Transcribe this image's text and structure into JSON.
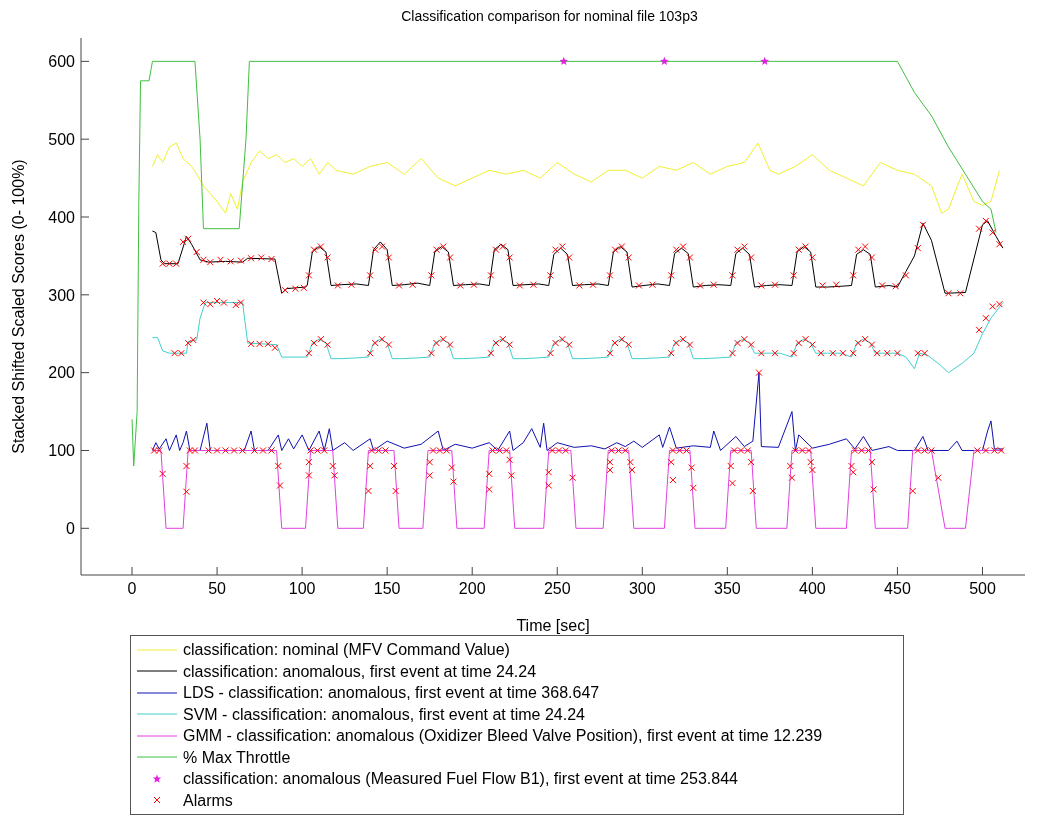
{
  "chart_data": {
    "type": "line",
    "title": "Classification comparison for nominal file 103p3",
    "xlabel": "Time [sec]",
    "ylabel": "Stacked Shifted Scaled Scores (0- 100%)",
    "xlim": [
      -30,
      525
    ],
    "ylim": [
      -60,
      630
    ],
    "xticks": [
      0,
      50,
      100,
      150,
      200,
      250,
      300,
      350,
      400,
      450,
      500
    ],
    "yticks": [
      0,
      100,
      200,
      300,
      400,
      500,
      600
    ],
    "legend": "bottom",
    "marker": "none",
    "series": [
      {
        "name": "classification: nominal (MFV Command Value)",
        "color": "#f0f030",
        "x": [
          12,
          15,
          18,
          22,
          26,
          30,
          35,
          38,
          42,
          46,
          50,
          55,
          58,
          62,
          65,
          70,
          75,
          80,
          85,
          90,
          95,
          100,
          105,
          110,
          115,
          120,
          130,
          140,
          150,
          160,
          170,
          180,
          190,
          200,
          210,
          220,
          230,
          240,
          250,
          260,
          270,
          280,
          290,
          300,
          310,
          320,
          330,
          340,
          350,
          360,
          368,
          375,
          380,
          390,
          400,
          410,
          420,
          430,
          440,
          450,
          460,
          470,
          476,
          480,
          488,
          495,
          500,
          505,
          510
        ],
        "values": [
          465,
          480,
          470,
          490,
          495,
          475,
          465,
          455,
          440,
          430,
          420,
          405,
          430,
          410,
          445,
          470,
          485,
          475,
          480,
          470,
          475,
          465,
          475,
          455,
          470,
          460,
          455,
          465,
          470,
          455,
          475,
          450,
          440,
          450,
          460,
          455,
          460,
          450,
          470,
          455,
          445,
          460,
          460,
          450,
          465,
          460,
          470,
          455,
          465,
          470,
          495,
          460,
          455,
          465,
          480,
          460,
          450,
          440,
          470,
          460,
          455,
          440,
          405,
          410,
          455,
          420,
          415,
          420,
          460
        ]
      },
      {
        "name": "classification: anomalous, first event at time 24.24",
        "color": "#000000",
        "x": [
          12,
          14,
          17,
          19,
          27,
          32,
          35,
          40,
          45,
          55,
          65,
          68,
          84,
          88,
          91,
          102,
          103,
          106,
          110,
          114,
          117,
          123,
          132,
          139,
          142,
          146,
          150,
          153,
          160,
          168,
          175,
          178,
          182,
          186,
          189,
          196,
          204,
          210,
          213,
          217,
          221,
          224,
          231,
          239,
          245,
          248,
          252,
          256,
          259,
          266,
          274,
          280,
          283,
          287,
          291,
          294,
          301,
          309,
          316,
          319,
          323,
          327,
          330,
          337,
          345,
          352,
          355,
          359,
          363,
          366,
          373,
          381,
          388,
          391,
          395,
          399,
          402,
          409,
          417,
          423,
          426,
          430,
          434,
          437,
          445,
          450,
          455,
          460,
          465,
          470,
          478,
          490,
          500,
          503,
          508,
          512
        ],
        "values": [
          382,
          380,
          345,
          340,
          340,
          375,
          365,
          345,
          342,
          343,
          342,
          347,
          346,
          302,
          308,
          310,
          312,
          355,
          362,
          355,
          312,
          313,
          314,
          312,
          358,
          368,
          358,
          312,
          313,
          315,
          312,
          355,
          362,
          355,
          312,
          313,
          314,
          312,
          358,
          365,
          358,
          312,
          313,
          314,
          312,
          352,
          360,
          352,
          312,
          313,
          314,
          312,
          355,
          362,
          355,
          310,
          312,
          314,
          312,
          353,
          360,
          353,
          310,
          312,
          313,
          312,
          353,
          360,
          352,
          310,
          312,
          313,
          312,
          355,
          362,
          355,
          310,
          310,
          311,
          312,
          352,
          358,
          352,
          310,
          312,
          310,
          330,
          350,
          392,
          370,
          302,
          303,
          390,
          395,
          375,
          360
        ]
      },
      {
        "name": "LDS - classification: anomalous, first event at time 368.647",
        "color": "#1010b0",
        "x": [
          12,
          14,
          16,
          20,
          22,
          26,
          28,
          30,
          32,
          34,
          40,
          44,
          46,
          66,
          70,
          72,
          80,
          86,
          88,
          92,
          95,
          100,
          104,
          110,
          113,
          116,
          118,
          125,
          130,
          140,
          142,
          150,
          160,
          170,
          180,
          183,
          190,
          200,
          210,
          215,
          222,
          224,
          230,
          235,
          240,
          242,
          244,
          250,
          260,
          270,
          278,
          285,
          290,
          295,
          300,
          310,
          312,
          316,
          320,
          330,
          340,
          342,
          346,
          355,
          360,
          365,
          368.6,
          370,
          380,
          388,
          390,
          392,
          400,
          410,
          420,
          425,
          430,
          435,
          445,
          450,
          460,
          465,
          468,
          480,
          485,
          488,
          500,
          503,
          505,
          507,
          512
        ],
        "values": [
          100,
          110,
          102,
          115,
          100,
          120,
          100,
          110,
          125,
          100,
          100,
          135,
          100,
          100,
          125,
          100,
          100,
          120,
          100,
          115,
          102,
          120,
          100,
          125,
          100,
          128,
          100,
          110,
          100,
          115,
          100,
          112,
          103,
          108,
          125,
          100,
          108,
          103,
          110,
          100,
          125,
          100,
          110,
          128,
          104,
          135,
          100,
          110,
          104,
          106,
          102,
          110,
          105,
          112,
          104,
          120,
          104,
          130,
          103,
          106,
          104,
          125,
          100,
          118,
          105,
          112,
          200,
          105,
          104,
          150,
          100,
          120,
          103,
          108,
          115,
          102,
          118,
          100,
          105,
          100,
          100,
          118,
          100,
          100,
          112,
          100,
          100,
          125,
          138,
          102,
          102
        ]
      },
      {
        "name": "SVM - classification: anomalous, first event at time 24.24",
        "color": "#40d0d0",
        "x": [
          12,
          15,
          18,
          22,
          32,
          33,
          38,
          40,
          43,
          65,
          68,
          85,
          88,
          102,
          103,
          106,
          110,
          114,
          117,
          123,
          132,
          139,
          142,
          146,
          150,
          153,
          159,
          168,
          175,
          178,
          182,
          186,
          189,
          195,
          204,
          210,
          213,
          217,
          221,
          224,
          230,
          239,
          245,
          248,
          252,
          256,
          259,
          265,
          274,
          280,
          283,
          287,
          291,
          294,
          300,
          309,
          316,
          319,
          323,
          327,
          330,
          336,
          345,
          352,
          355,
          359,
          363,
          366,
          373,
          381,
          388,
          391,
          395,
          399,
          402,
          409,
          417,
          423,
          426,
          430,
          434,
          437,
          445,
          450,
          455,
          460,
          463,
          468,
          475,
          480,
          488,
          495,
          500,
          505,
          512
        ],
        "values": [
          245,
          245,
          228,
          225,
          225,
          240,
          242,
          270,
          290,
          290,
          238,
          236,
          220,
          220,
          220,
          238,
          243,
          238,
          218,
          218,
          219,
          220,
          238,
          243,
          238,
          218,
          218,
          219,
          220,
          238,
          243,
          238,
          218,
          218,
          219,
          220,
          238,
          243,
          238,
          218,
          218,
          219,
          220,
          238,
          243,
          238,
          218,
          218,
          219,
          220,
          238,
          243,
          238,
          218,
          218,
          219,
          220,
          238,
          243,
          238,
          218,
          218,
          219,
          220,
          238,
          243,
          238,
          225,
          225,
          225,
          220,
          238,
          243,
          238,
          225,
          225,
          225,
          220,
          238,
          243,
          238,
          225,
          225,
          225,
          220,
          205,
          225,
          222,
          210,
          200,
          212,
          225,
          250,
          270,
          290
        ]
      },
      {
        "name": "GMM - classification: anomalous (Oxidizer Bleed Valve Position), first event at time 12.239",
        "color": "#e040e0",
        "x": [
          12,
          17,
          20,
          30,
          33,
          85,
          88,
          102,
          105,
          118,
          121,
          136,
          139,
          154,
          157,
          171,
          174,
          188,
          191,
          207,
          210,
          222,
          225,
          242,
          245,
          258,
          261,
          277,
          280,
          292,
          295,
          313,
          316,
          328,
          331,
          349,
          352,
          364,
          367,
          385,
          388,
          399,
          402,
          420,
          423,
          434,
          437,
          456,
          459,
          470,
          478,
          490,
          495,
          512
        ],
        "values": [
          100,
          100,
          0,
          0,
          100,
          100,
          0,
          0,
          100,
          100,
          0,
          0,
          100,
          100,
          0,
          0,
          100,
          100,
          0,
          0,
          100,
          100,
          0,
          0,
          100,
          100,
          0,
          0,
          100,
          100,
          0,
          0,
          100,
          100,
          0,
          0,
          100,
          100,
          0,
          0,
          100,
          100,
          0,
          0,
          100,
          100,
          0,
          0,
          100,
          100,
          0,
          0,
          100,
          100
        ]
      },
      {
        "name": "% Max Throttle",
        "color": "#40c040",
        "x": [
          0,
          1,
          3,
          4,
          5,
          10,
          12,
          37,
          40,
          42,
          63,
          67,
          69,
          450,
          460,
          470,
          480,
          490,
          500,
          505,
          508
        ],
        "values": [
          140,
          80,
          150,
          420,
          575,
          575,
          600,
          600,
          500,
          385,
          385,
          500,
          600,
          600,
          560,
          530,
          490,
          455,
          420,
          410,
          380
        ]
      },
      {
        "name": "classification: anomalous (Measured Fuel Flow B1), first event at time 253.844",
        "type": "scatter",
        "marker": "star",
        "color": "#e020e0",
        "x": [
          253.844,
          313,
          372
        ],
        "values": [
          600,
          600,
          600
        ]
      },
      {
        "name": "Alarms",
        "type": "scatter",
        "marker": "cross",
        "color": "#ff0000",
        "x": [
          13,
          16,
          34,
          37,
          45,
          50,
          55,
          60,
          65,
          72,
          77,
          82,
          105,
          109,
          113,
          141,
          145,
          149,
          177,
          181,
          185,
          212,
          216,
          220,
          247,
          251,
          255,
          282,
          286,
          290,
          318,
          322,
          326,
          354,
          358,
          362,
          390,
          394,
          398,
          425,
          429,
          433,
          497,
          502,
          507,
          511,
          18,
          32,
          32,
          86,
          87,
          104,
          104,
          118,
          119,
          139,
          140,
          154,
          155,
          175,
          175,
          188,
          189,
          210,
          210,
          222,
          223,
          245,
          245,
          259,
          281,
          281,
          293,
          294,
          317,
          318,
          329,
          330,
          352,
          353,
          364,
          365,
          387,
          388,
          399,
          400,
          423,
          424,
          435,
          436,
          459,
          474,
          368.6,
          462,
          466,
          470,
          18,
          22,
          26,
          30,
          33,
          38,
          42,
          46,
          52,
          58,
          64,
          70,
          76,
          82,
          90,
          96,
          101,
          104,
          107,
          111,
          115,
          121,
          129,
          140,
          143,
          147,
          151,
          157,
          165,
          176,
          179,
          183,
          187,
          193,
          201,
          211,
          214,
          218,
          222,
          228,
          236,
          246,
          249,
          253,
          257,
          263,
          271,
          281,
          284,
          288,
          292,
          298,
          306,
          317,
          320,
          324,
          328,
          334,
          342,
          353,
          356,
          360,
          364,
          370,
          378,
          389,
          392,
          396,
          400,
          406,
          414,
          424,
          427,
          431,
          435,
          441,
          449,
          455,
          462,
          465,
          480,
          487,
          498,
          502,
          506,
          510,
          25,
          29,
          33,
          36,
          42,
          46,
          50,
          54,
          61,
          64,
          70,
          75,
          80,
          84,
          104,
          107,
          111,
          115,
          140,
          143,
          147,
          151,
          176,
          179,
          183,
          187,
          211,
          214,
          218,
          222,
          246,
          249,
          253,
          257,
          281,
          284,
          288,
          292,
          317,
          320,
          324,
          328,
          353,
          356,
          360,
          364,
          389,
          392,
          396,
          400,
          424,
          427,
          431,
          435,
          370,
          378,
          405,
          412,
          418,
          438,
          444,
          450,
          462,
          466,
          498,
          502,
          506,
          510
        ],
        "values": [
          100,
          100,
          100,
          100,
          100,
          100,
          100,
          100,
          100,
          100,
          100,
          100,
          100,
          100,
          100,
          100,
          100,
          100,
          100,
          100,
          100,
          100,
          100,
          100,
          100,
          100,
          100,
          100,
          100,
          100,
          100,
          100,
          100,
          100,
          100,
          100,
          100,
          100,
          100,
          100,
          100,
          100,
          100,
          100,
          100,
          100,
          70,
          80,
          47,
          80,
          55,
          85,
          68,
          80,
          68,
          48,
          80,
          80,
          48,
          85,
          68,
          78,
          60,
          70,
          50,
          88,
          68,
          72,
          55,
          65,
          85,
          75,
          85,
          75,
          85,
          62,
          78,
          52,
          80,
          58,
          85,
          48,
          80,
          65,
          85,
          75,
          80,
          72,
          85,
          50,
          48,
          65,
          200,
          100,
          100,
          100,
          340,
          340,
          340,
          368,
          372,
          355,
          345,
          342,
          345,
          343,
          344,
          347,
          348,
          346,
          306,
          308,
          309,
          325,
          358,
          362,
          348,
          312,
          313,
          325,
          358,
          362,
          348,
          312,
          313,
          325,
          358,
          362,
          348,
          312,
          313,
          325,
          358,
          362,
          348,
          312,
          313,
          325,
          358,
          362,
          348,
          312,
          313,
          325,
          358,
          362,
          348,
          312,
          313,
          325,
          358,
          362,
          348,
          312,
          313,
          325,
          358,
          362,
          348,
          312,
          313,
          325,
          358,
          362,
          348,
          312,
          313,
          325,
          358,
          362,
          348,
          312,
          311,
          325,
          360,
          390,
          302,
          302,
          385,
          395,
          380,
          365,
          225,
          225,
          238,
          242,
          290,
          288,
          292,
          290,
          287,
          290,
          237,
          237,
          237,
          232,
          225,
          238,
          243,
          236,
          225,
          238,
          243,
          236,
          225,
          238,
          243,
          236,
          225,
          238,
          243,
          236,
          225,
          238,
          243,
          236,
          225,
          238,
          243,
          236,
          225,
          238,
          243,
          236,
          225,
          238,
          243,
          236,
          225,
          238,
          243,
          236,
          225,
          238,
          243,
          236,
          225,
          225,
          225,
          225,
          225,
          225,
          225,
          225,
          225,
          225,
          255,
          270,
          285,
          288
        ]
      }
    ]
  }
}
